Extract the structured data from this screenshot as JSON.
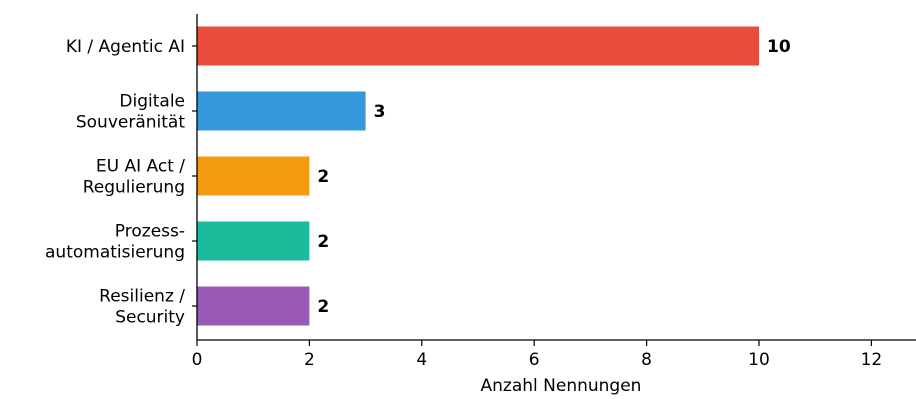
{
  "chart_data": {
    "type": "bar",
    "orientation": "horizontal",
    "categories": [
      [
        "KI / Agentic AI"
      ],
      [
        "Digitale",
        "Souveränität"
      ],
      [
        "EU AI Act /",
        "Regulierung"
      ],
      [
        "Prozess-",
        "automatisierung"
      ],
      [
        "Resilienz /",
        "Security"
      ]
    ],
    "values": [
      10,
      3,
      2,
      2,
      2
    ],
    "colors": [
      "#e74c3c",
      "#3498db",
      "#f39c12",
      "#1abc9c",
      "#9b59b6"
    ],
    "data_labels": [
      "10",
      "3",
      "2",
      "2",
      "2"
    ],
    "xlabel": "Anzahl Nennungen",
    "xlim": [
      0,
      12.8
    ],
    "xticks": [
      0,
      2,
      4,
      6,
      8,
      10,
      12
    ],
    "grid": false
  }
}
